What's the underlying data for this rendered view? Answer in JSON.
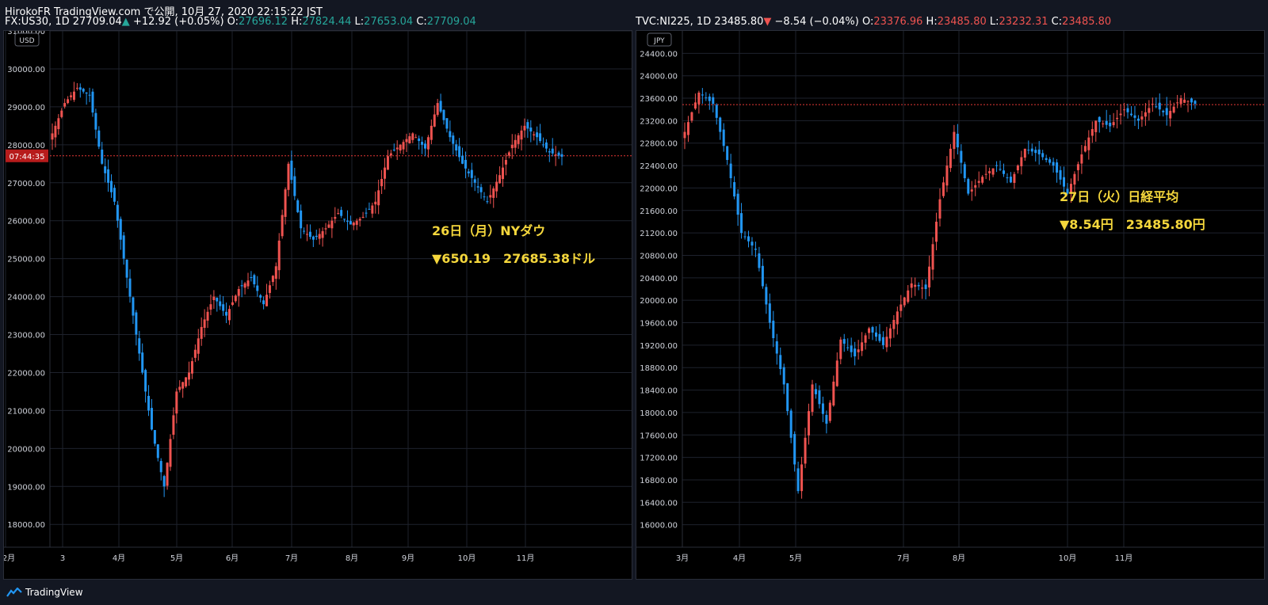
{
  "header": {
    "published": "HirokoFR TradingView.com で公開, 10月 27, 2020 22:15:22 JST"
  },
  "footer": {
    "brand": "TradingView"
  },
  "colors": {
    "up": "#ef5350",
    "down": "#2196f3",
    "ohlc_up": "#26a69a",
    "ohlc_down": "#ef5350",
    "annotation": "#f5d73c",
    "price_line": "#e53935"
  },
  "chart_data": [
    {
      "type": "candlestick",
      "symbol_line": {
        "symbol": "FX:US30, 1D",
        "last": "27709.04",
        "arrow": "▲",
        "change": "+12.92 (+0.05%)",
        "o": "27696.12",
        "h": "27824.44",
        "l": "27653.04",
        "c": "27709.04"
      },
      "currency": "USD",
      "ylim": [
        17400,
        31000
      ],
      "y_ticks": [
        "31000.00",
        "30000.00",
        "29000.00",
        "28000.00",
        "27000.00",
        "26000.00",
        "25000.00",
        "24000.00",
        "23000.00",
        "22000.00",
        "21000.00",
        "20000.00",
        "19000.00",
        "18000.00"
      ],
      "x_ticks": [
        "2月",
        "3",
        "4月",
        "5月",
        "6月",
        "7月",
        "8月",
        "9月",
        "10月",
        "11月"
      ],
      "price_line_value": 27709.04,
      "countdown_label": "07:44:35",
      "annotation": {
        "line1": "26日（月）NYダウ",
        "line2": "▼650.19　27685.38ドル"
      },
      "series": [
        28300,
        29100,
        29500,
        29300,
        27500,
        26500,
        24500,
        22500,
        20500,
        19000,
        21500,
        22000,
        23200,
        24000,
        23500,
        24200,
        24500,
        23800,
        24800,
        27500,
        25800,
        25500,
        25800,
        26200,
        25900,
        26100,
        26500,
        27700,
        28000,
        28300,
        27900,
        29100,
        28200,
        27500,
        27000,
        26500,
        27200,
        28000,
        28500,
        28200,
        27800,
        27685
      ]
    },
    {
      "type": "candlestick",
      "symbol_line": {
        "symbol": "TVC:NI225, 1D",
        "last": "23485.80",
        "arrow": "▼",
        "change": "−8.54 (−0.04%)",
        "o": "23376.96",
        "h": "23485.80",
        "l": "23232.31",
        "c": "23485.80"
      },
      "currency": "JPY",
      "ylim": [
        15600,
        24800
      ],
      "y_ticks": [
        "24400.00",
        "24000.00",
        "23600.00",
        "23200.00",
        "22800.00",
        "22400.00",
        "22000.00",
        "21600.00",
        "21200.00",
        "20800.00",
        "20400.00",
        "20000.00",
        "19600.00",
        "19200.00",
        "18800.00",
        "18400.00",
        "18000.00",
        "17600.00",
        "17200.00",
        "16800.00",
        "16400.00",
        "16000.00"
      ],
      "x_ticks": [
        "3月",
        "4月",
        "5月",
        "7月",
        "8月",
        "10月",
        "11月"
      ],
      "price_line_value": 23485.8,
      "annotation": {
        "line1": "27日（火）日経平均",
        "line2": "▼8.54円　23485.80円"
      },
      "series": [
        23000,
        23700,
        23500,
        22500,
        21200,
        20900,
        19600,
        18500,
        16600,
        18500,
        17800,
        19300,
        19000,
        19500,
        19200,
        19800,
        20300,
        20200,
        21800,
        23000,
        21900,
        22200,
        22400,
        22100,
        22700,
        22600,
        22400,
        21900,
        22600,
        23200,
        23100,
        23400,
        23200,
        23500,
        23300,
        23600,
        23500
      ]
    }
  ]
}
